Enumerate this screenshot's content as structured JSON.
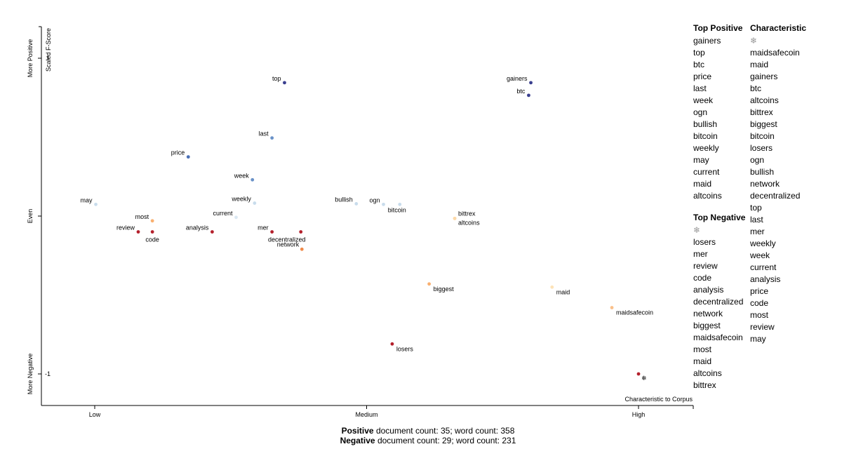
{
  "chart_data": {
    "type": "scatter",
    "x_axis": {
      "label": "Characteristic to Corpus",
      "ticks": [
        "Low",
        "Medium",
        "High"
      ]
    },
    "y_axis": {
      "label": "Scaled F-Score",
      "ticks": [
        "More Negative",
        "Even",
        "More Positive"
      ],
      "tick_values": [
        "-1",
        "",
        "1"
      ]
    },
    "points": [
      {
        "term": "top",
        "x": 0.349,
        "y": 0.845,
        "color": "#3a3f8f"
      },
      {
        "term": "gainers",
        "x": 0.802,
        "y": 0.845,
        "color": "#3a3f8f"
      },
      {
        "term": "btc",
        "x": 0.798,
        "y": 0.765,
        "color": "#3a3f8f"
      },
      {
        "term": "last",
        "x": 0.326,
        "y": 0.495,
        "color": "#6a92c8"
      },
      {
        "term": "price",
        "x": 0.172,
        "y": 0.375,
        "color": "#4a6fb5"
      },
      {
        "term": "week",
        "x": 0.29,
        "y": 0.23,
        "color": "#6a92c8"
      },
      {
        "term": "weekly",
        "x": 0.294,
        "y": 0.082,
        "color": "#c8dcec"
      },
      {
        "term": "may",
        "x": 0.002,
        "y": 0.074,
        "color": "#c8dcec"
      },
      {
        "term": "bullish",
        "x": 0.481,
        "y": 0.078,
        "color": "#c8dcec"
      },
      {
        "term": "ogn",
        "x": 0.531,
        "y": 0.074,
        "color": "#c8dcec"
      },
      {
        "term": "bitcoin",
        "x": 0.561,
        "y": 0.074,
        "color": "#c8dcec"
      },
      {
        "term": "current",
        "x": 0.26,
        "y": -0.008,
        "color": "#dbe8f2"
      },
      {
        "term": "bittrex",
        "x": 0.662,
        "y": -0.015,
        "color": "#fdd9a8"
      },
      {
        "term": "altcoins",
        "x": 0.662,
        "y": -0.015,
        "color": "#fdd9a8"
      },
      {
        "term": "most",
        "x": 0.106,
        "y": -0.03,
        "color": "#f9b070"
      },
      {
        "term": "review",
        "x": 0.08,
        "y": -0.1,
        "color": "#b4202c"
      },
      {
        "term": "code",
        "x": 0.106,
        "y": -0.1,
        "color": "#b4202c"
      },
      {
        "term": "analysis",
        "x": 0.216,
        "y": -0.1,
        "color": "#b4202c"
      },
      {
        "term": "mer",
        "x": 0.326,
        "y": -0.1,
        "color": "#b4202c"
      },
      {
        "term": "decentralized",
        "x": 0.379,
        "y": -0.1,
        "color": "#b4202c"
      },
      {
        "term": "network",
        "x": 0.381,
        "y": -0.21,
        "color": "#f08a4a"
      },
      {
        "term": "biggest",
        "x": 0.615,
        "y": -0.43,
        "color": "#f9b070"
      },
      {
        "term": "maid",
        "x": 0.841,
        "y": -0.45,
        "color": "#fde3b8"
      },
      {
        "term": "maidsafecoin",
        "x": 0.951,
        "y": -0.58,
        "color": "#fac08a"
      },
      {
        "term": "losers",
        "x": 0.547,
        "y": -0.81,
        "color": "#b4202c"
      },
      {
        "term": "❄",
        "x": 1.0,
        "y": -1.0,
        "color": "#b4202c"
      }
    ]
  },
  "top_positive": {
    "title": "Top Positive",
    "items": [
      "gainers",
      "top",
      "btc",
      "price",
      "last",
      "week",
      "ogn",
      "bullish",
      "bitcoin",
      "weekly",
      "may",
      "current",
      "maid",
      "altcoins"
    ]
  },
  "top_negative": {
    "title": "Top Negative",
    "items": [
      "❄",
      "losers",
      "mer",
      "review",
      "code",
      "analysis",
      "decentralized",
      "network",
      "biggest",
      "maidsafecoin",
      "most",
      "maid",
      "altcoins",
      "bittrex"
    ]
  },
  "characteristic": {
    "title": "Characteristic",
    "items": [
      "❄",
      "maidsafecoin",
      "maid",
      "gainers",
      "btc",
      "altcoins",
      "bittrex",
      "biggest",
      "bitcoin",
      "losers",
      "ogn",
      "bullish",
      "network",
      "decentralized",
      "top",
      "last",
      "mer",
      "weekly",
      "week",
      "current",
      "analysis",
      "price",
      "code",
      "most",
      "review",
      "may"
    ]
  },
  "footer": {
    "positive_label": "Positive",
    "positive_counts": " document count: 35; word count: 358",
    "negative_label": "Negative",
    "negative_counts": " document count: 29; word count: 231"
  }
}
